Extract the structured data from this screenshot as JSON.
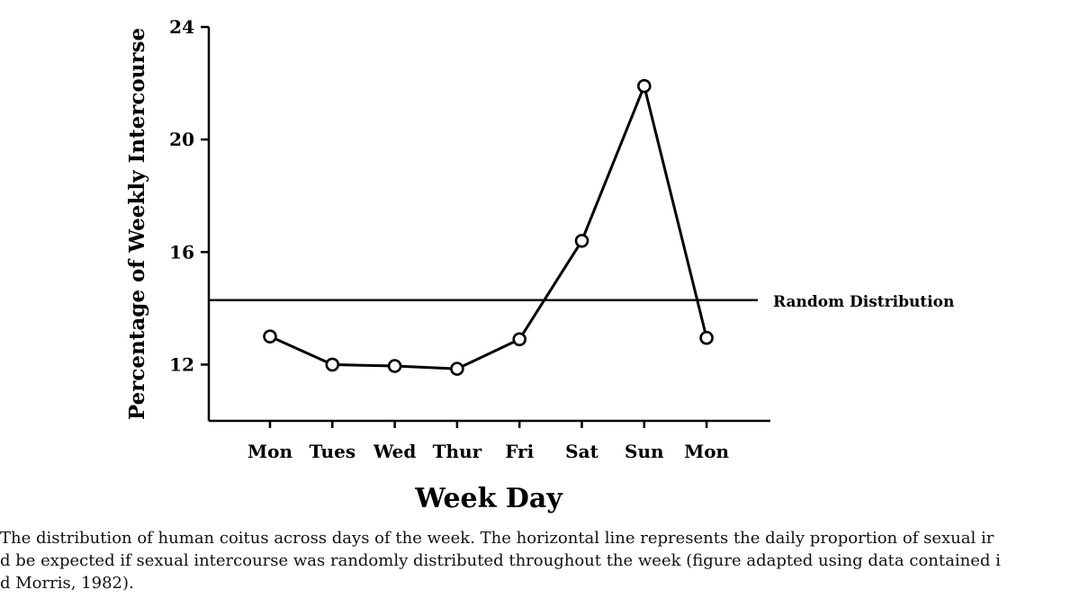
{
  "chart_data": {
    "type": "line",
    "title": "",
    "xlabel": "Week Day",
    "ylabel": "Percentage of Weekly Intercourse",
    "categories": [
      "Mon",
      "Tues",
      "Wed",
      "Thur",
      "Fri",
      "Sat",
      "Sun",
      "Mon"
    ],
    "series": [
      {
        "values": [
          13.0,
          12.0,
          11.95,
          11.85,
          12.9,
          16.4,
          21.9,
          12.95
        ]
      }
    ],
    "reference_line": {
      "label": "Random Distribution",
      "value": 14.29
    },
    "y_ticks": [
      "12",
      "16",
      "20",
      "24"
    ],
    "ylim": [
      10,
      24
    ],
    "grid": false,
    "legend": "none",
    "marker": "open-circle",
    "line_color": "#000000"
  },
  "caption": {
    "lines": [
      "The distribution of human coitus across days of the week. The horizontal line represents the daily proportion of sexual ir",
      "d be expected if sexual intercourse was randomly distributed throughout the week (figure adapted using data contained i",
      "d Morris, 1982)."
    ]
  }
}
